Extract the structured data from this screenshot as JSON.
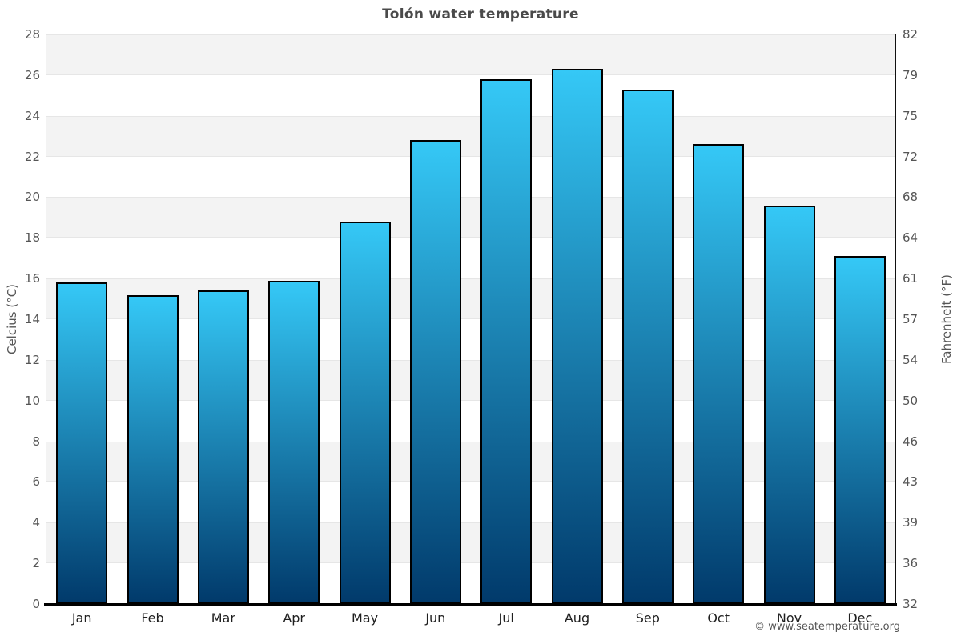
{
  "chart_data": {
    "type": "bar",
    "title": "Tolón water temperature",
    "categories": [
      "Jan",
      "Feb",
      "Mar",
      "Apr",
      "May",
      "Jun",
      "Jul",
      "Aug",
      "Sep",
      "Oct",
      "Nov",
      "Dec"
    ],
    "values": [
      15.8,
      15.2,
      15.4,
      15.9,
      18.8,
      22.8,
      25.8,
      26.3,
      25.3,
      22.6,
      19.6,
      17.1
    ],
    "ylabel_left": "Celcius (°C)",
    "ylabel_right": "Fahrenheit (°F)",
    "ylim": [
      0,
      28
    ],
    "yticks_celsius": [
      28,
      26,
      24,
      22,
      20,
      18,
      16,
      14,
      12,
      10,
      8,
      6,
      4,
      2,
      0
    ],
    "yticks_fahrenheit": [
      82,
      79,
      75,
      72,
      68,
      64,
      61,
      57,
      54,
      50,
      46,
      43,
      39,
      36,
      32
    ],
    "legend": "none",
    "grid": "alternating horizontal bands every 2°C",
    "band_color": "#f3f3f3",
    "bar_color_top": "#35c8f6",
    "bar_color_bottom": "#013a6b",
    "bar_border_color": "#000000",
    "title_color": "#4a4a4a",
    "tick_label_color": "#555555"
  },
  "footer": {
    "copyright": "© www.seatemperature.org"
  }
}
